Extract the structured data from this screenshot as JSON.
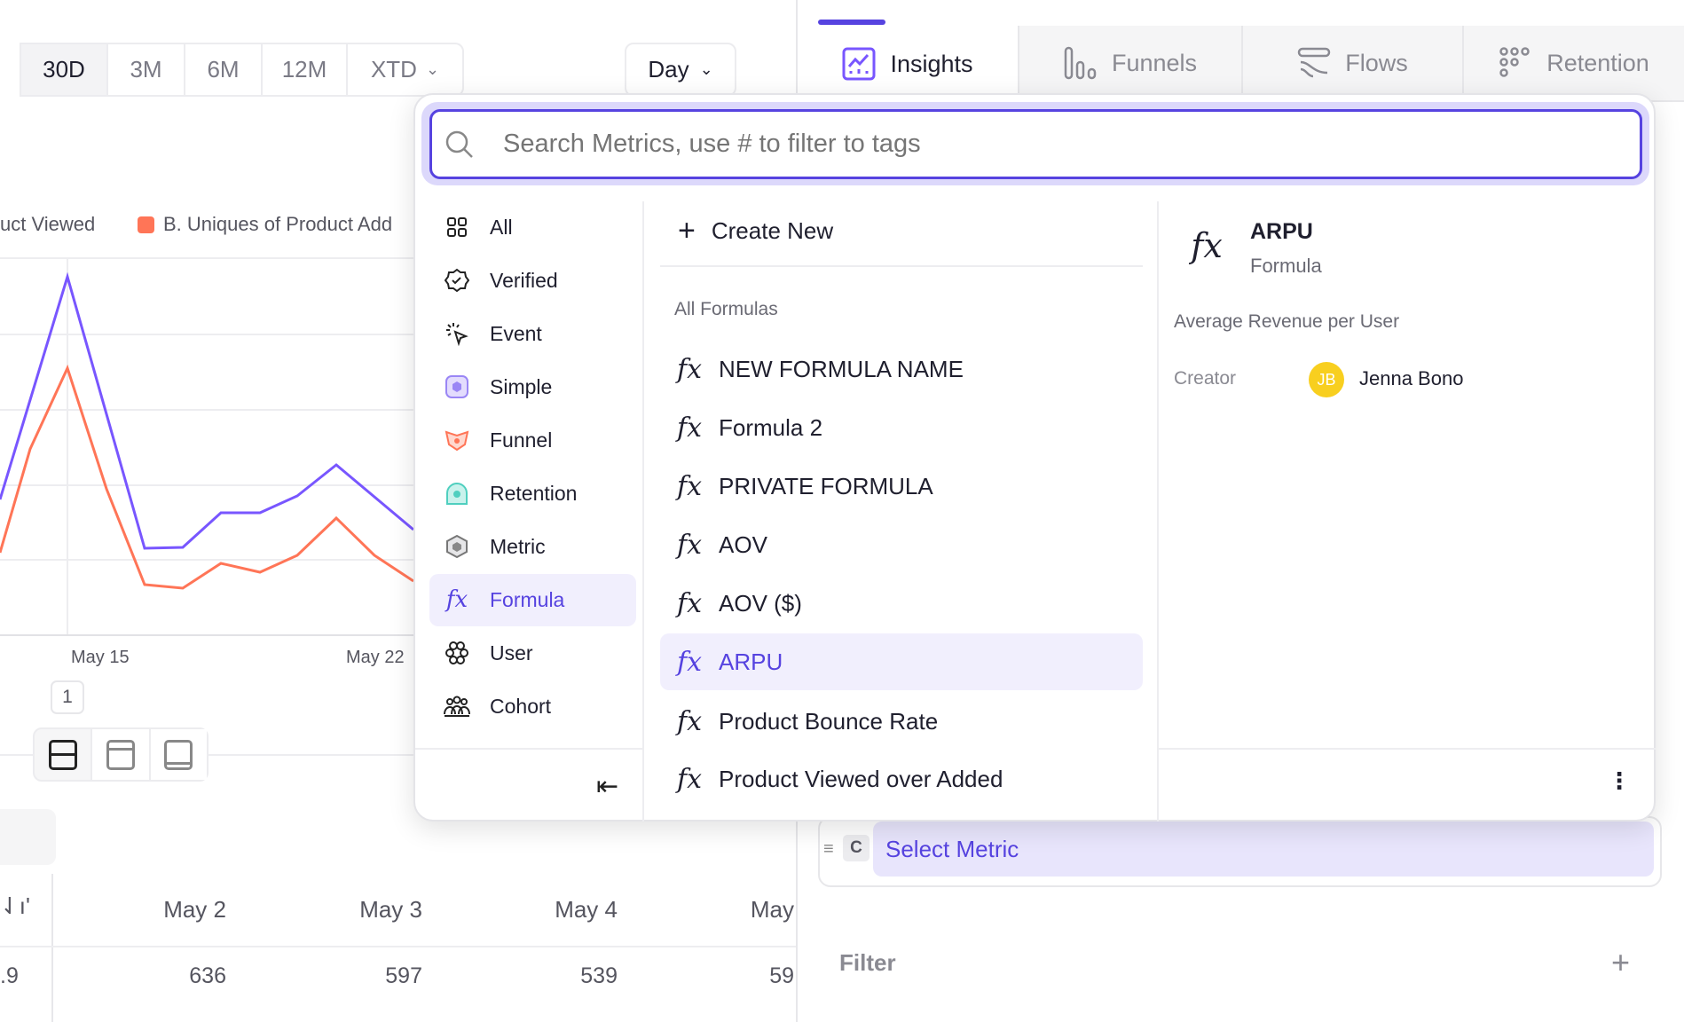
{
  "time_range": {
    "buttons": [
      "30D",
      "3M",
      "6M",
      "12M",
      "XTD"
    ],
    "active": "30D"
  },
  "granularity": {
    "label": "Day"
  },
  "legend": [
    {
      "label": "uct Viewed",
      "color": "#7856ff"
    },
    {
      "label": "B. Uniques of Product Add",
      "color": "#ff7557"
    }
  ],
  "chart": {
    "x_labels": [
      "May 15",
      "May 22"
    ],
    "colors": {
      "a": "#7856ff",
      "b": "#ff7557"
    }
  },
  "pagination": {
    "page": "1"
  },
  "table": {
    "headers": [
      "May 2",
      "May 3",
      "May 4",
      "May"
    ],
    "row": [
      ".9",
      "636",
      "597",
      "539",
      "59"
    ]
  },
  "report_tabs": [
    {
      "label": "Insights",
      "icon": "insights-icon",
      "active": true
    },
    {
      "label": "Funnels",
      "icon": "funnels-icon"
    },
    {
      "label": "Flows",
      "icon": "flows-icon"
    },
    {
      "label": "Retention",
      "icon": "retention-icon"
    }
  ],
  "metric_row": {
    "letter": "C",
    "label": "Select Metric"
  },
  "filter": {
    "label": "Filter"
  },
  "popup": {
    "search_placeholder": "Search Metrics, use # to filter to tags",
    "categories": [
      {
        "label": "All",
        "icon": "grid-icon"
      },
      {
        "label": "Verified",
        "icon": "verified-icon"
      },
      {
        "label": "Event",
        "icon": "cursor-click-icon"
      },
      {
        "label": "Simple",
        "icon": "simple-metric-icon"
      },
      {
        "label": "Funnel",
        "icon": "funnel-icon"
      },
      {
        "label": "Retention",
        "icon": "retention-icon"
      },
      {
        "label": "Metric",
        "icon": "metric-icon"
      },
      {
        "label": "Formula",
        "icon": "formula-icon",
        "active": true
      },
      {
        "label": "User",
        "icon": "user-icon"
      },
      {
        "label": "Cohort",
        "icon": "cohort-icon"
      }
    ],
    "create_new": "Create New",
    "section_title": "All Formulas",
    "formulas": [
      "NEW FORMULA NAME",
      "Formula 2",
      "PRIVATE FORMULA",
      "AOV",
      "AOV ($)",
      "ARPU",
      "Product Bounce Rate",
      "Product Viewed over Added"
    ],
    "selected_formula": "ARPU",
    "detail": {
      "title": "ARPU",
      "type": "Formula",
      "description": "Average Revenue per User",
      "creator_label": "Creator",
      "creator_initials": "JB",
      "creator_name": "Jenna Bono"
    }
  }
}
